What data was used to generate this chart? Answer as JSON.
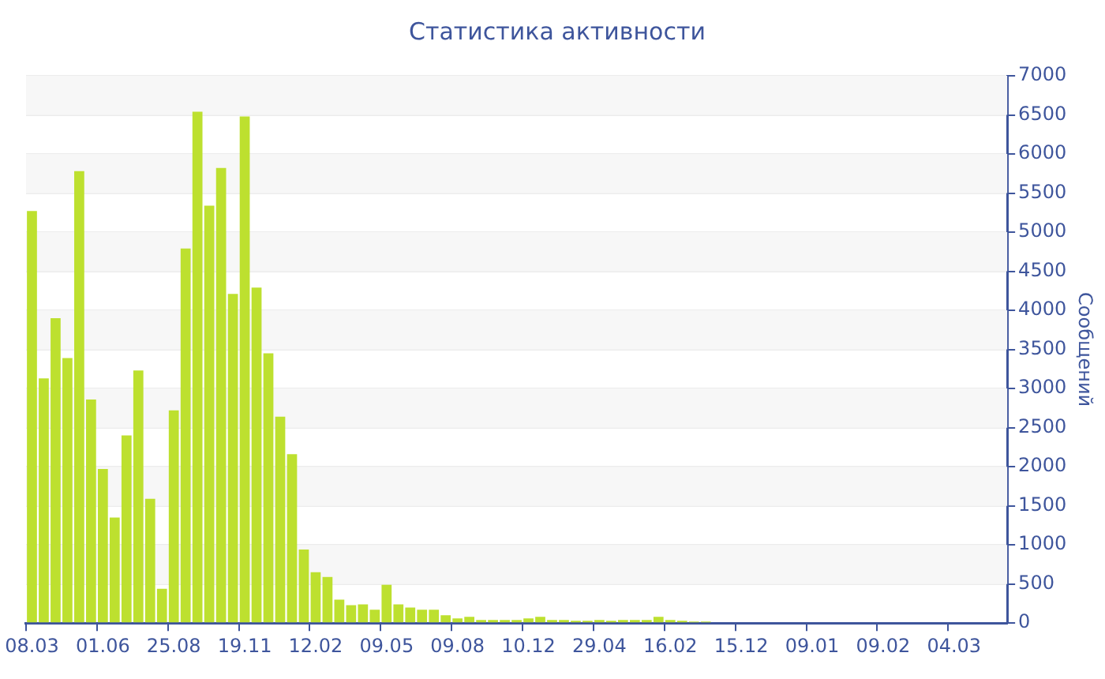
{
  "chart_data": {
    "type": "bar",
    "title": "Статистика активности",
    "ylabel": "Сообщений",
    "categories": [
      "08.03",
      null,
      null,
      null,
      null,
      null,
      "01.06",
      null,
      null,
      null,
      null,
      null,
      "25.08",
      null,
      null,
      null,
      null,
      null,
      "19.11",
      null,
      null,
      null,
      null,
      null,
      "12.02",
      null,
      null,
      null,
      null,
      null,
      "09.05",
      null,
      null,
      null,
      null,
      null,
      "09.08",
      null,
      null,
      null,
      null,
      null,
      "10.12",
      null,
      null,
      null,
      null,
      null,
      "29.04",
      null,
      null,
      null,
      null,
      null,
      "16.02",
      null,
      null,
      null,
      null,
      null,
      "15.12",
      null,
      null,
      null,
      null,
      null,
      "09.01",
      null,
      null,
      null,
      null,
      null,
      "09.02",
      null,
      null,
      null,
      null,
      null,
      "04.03",
      null,
      null,
      null,
      null
    ],
    "values": [
      5270,
      3130,
      3900,
      3390,
      5780,
      2860,
      1970,
      1350,
      2400,
      3230,
      1590,
      440,
      2720,
      4790,
      6540,
      5340,
      5820,
      4210,
      6480,
      4290,
      3450,
      2640,
      2160,
      940,
      650,
      590,
      300,
      230,
      240,
      170,
      490,
      240,
      200,
      170,
      170,
      100,
      60,
      80,
      40,
      40,
      40,
      40,
      60,
      80,
      40,
      40,
      30,
      30,
      40,
      30,
      40,
      40,
      40,
      80,
      40,
      30,
      20,
      20,
      10,
      10,
      10,
      10,
      10,
      10,
      10,
      10,
      10,
      10,
      10,
      10,
      10,
      10,
      10,
      10,
      10,
      10,
      10,
      10,
      10,
      10,
      10,
      10,
      10
    ],
    "color": "#bde02f",
    "ylim": [
      0,
      7000
    ],
    "yticks": [
      0,
      500,
      1000,
      1500,
      2000,
      2500,
      3000,
      3500,
      4000,
      4500,
      5000,
      5500,
      6000,
      6500,
      7000
    ],
    "grid": true,
    "legend": false
  }
}
